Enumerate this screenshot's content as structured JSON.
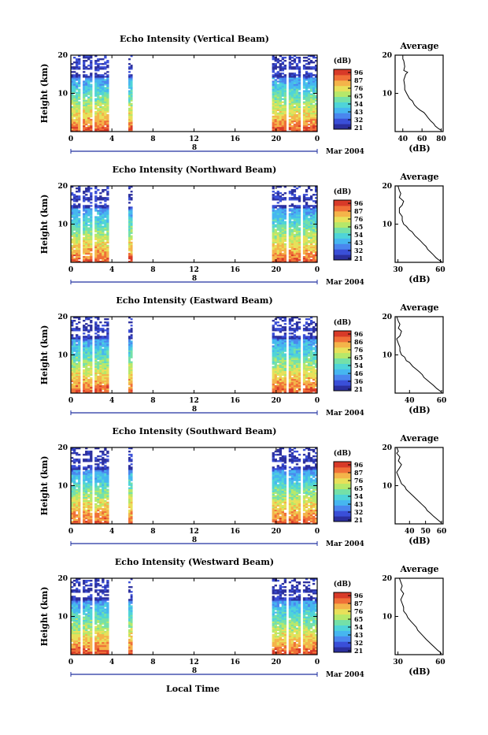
{
  "colorbar_colors": [
    "#2b2f9e",
    "#3a4fd8",
    "#4a86ee",
    "#46b6f0",
    "#4fd4d8",
    "#74e0a8",
    "#b6e86a",
    "#e8e05a",
    "#f4b44a",
    "#f07038",
    "#d83a28"
  ],
  "shared": {
    "x_ticks": [
      "0",
      "4",
      "8",
      "12",
      "16",
      "20",
      "0"
    ],
    "date_tick": "8",
    "date_label": "Mar 2004",
    "y_ticks": [
      "20",
      "10"
    ],
    "ylabel": "Height (km)",
    "unit": "(dB)",
    "avg_title": "Average",
    "xlabel": "Local Time"
  },
  "chart_data": [
    {
      "type": "heatmap",
      "title": "Echo Intensity (Vertical Beam)",
      "ylabel": "Height (km)",
      "xlabel": "",
      "ylim": [
        0,
        20
      ],
      "xlim": [
        0,
        24
      ],
      "data_blocks_hours": [
        [
          0,
          3.7
        ],
        [
          5.6,
          6.0
        ],
        [
          19.6,
          24
        ]
      ],
      "colorbar": {
        "label": "(dB)",
        "ticks": [
          "96",
          "87",
          "76",
          "65",
          "54",
          "43",
          "32",
          "21"
        ]
      },
      "avg_profile": {
        "title": "Average",
        "xlabel": "(dB)",
        "x_ticks": [
          "40",
          "60",
          "80"
        ],
        "xlim": [
          32,
          82
        ],
        "ylim": [
          0,
          20
        ],
        "x": [
          40,
          40,
          41,
          42,
          41,
          45,
          43,
          42,
          41,
          42,
          42,
          44,
          45,
          47,
          50,
          52,
          55,
          58,
          62,
          64,
          66,
          69,
          72,
          74,
          77,
          80
        ],
        "y": [
          20,
          19,
          18.5,
          17,
          16,
          15.5,
          15,
          14.2,
          13.5,
          12,
          11,
          10,
          9.5,
          8.6,
          8,
          7,
          6.2,
          5.6,
          5,
          4.4,
          3.7,
          2.8,
          2.1,
          1.4,
          0.8,
          0.3
        ]
      }
    },
    {
      "type": "heatmap",
      "title": "Echo Intensity (Northward Beam)",
      "ylabel": "Height (km)",
      "xlabel": "",
      "ylim": [
        0,
        20
      ],
      "xlim": [
        0,
        24
      ],
      "data_blocks_hours": [
        [
          0,
          3.7
        ],
        [
          5.6,
          6.0
        ],
        [
          19.6,
          24
        ]
      ],
      "colorbar": {
        "label": "(dB)",
        "ticks": [
          "96",
          "87",
          "76",
          "65",
          "54",
          "43",
          "32",
          "21"
        ]
      },
      "avg_profile": {
        "title": "Average",
        "xlabel": "(dB)",
        "x_ticks": [
          "30",
          "60"
        ],
        "xlim": [
          28,
          62
        ],
        "ylim": [
          0,
          20
        ],
        "x": [
          30,
          31,
          32,
          31,
          34,
          33,
          31,
          31,
          33,
          33,
          34,
          36,
          38,
          40,
          42,
          44,
          46,
          48,
          50,
          51,
          53,
          55,
          57,
          59,
          61
        ],
        "y": [
          20,
          18.8,
          18,
          17,
          16,
          15,
          14.2,
          13,
          12,
          11,
          10,
          9.4,
          8.5,
          8,
          7,
          6.3,
          5.6,
          4.8,
          4.1,
          3.4,
          2.7,
          2,
          1.2,
          0.6,
          0.2
        ]
      }
    },
    {
      "type": "heatmap",
      "title": "Echo Intensity (Eastward Beam)",
      "ylabel": "Height (km)",
      "xlabel": "",
      "ylim": [
        0,
        20
      ],
      "xlim": [
        0,
        24
      ],
      "data_blocks_hours": [
        [
          0,
          3.7
        ],
        [
          5.6,
          6.0
        ],
        [
          19.6,
          24
        ]
      ],
      "colorbar": {
        "label": "(dB)",
        "ticks": [
          "96",
          "86",
          "76",
          "65",
          "54",
          "46",
          "36",
          "21"
        ]
      },
      "avg_profile": {
        "title": "Average",
        "xlabel": "(dB)",
        "x_ticks": [
          "40",
          "60"
        ],
        "xlim": [
          31,
          61
        ],
        "ylim": [
          0,
          20
        ],
        "x": [
          32,
          33,
          34,
          33,
          35,
          34,
          32,
          33,
          34,
          34,
          35,
          37,
          38,
          40,
          42,
          44,
          46,
          48,
          49,
          51,
          53,
          55,
          57,
          59,
          60
        ],
        "y": [
          20,
          18.8,
          18,
          17,
          16.2,
          15,
          14.2,
          13,
          12,
          11,
          10,
          9.4,
          8.5,
          8,
          7,
          6.3,
          5.6,
          4.8,
          4.1,
          3.4,
          2.7,
          2,
          1.2,
          0.6,
          0.2
        ]
      }
    },
    {
      "type": "heatmap",
      "title": "Echo Intensity (Southward Beam)",
      "ylabel": "Height (km)",
      "xlabel": "",
      "ylim": [
        0,
        20
      ],
      "xlim": [
        0,
        24
      ],
      "data_blocks_hours": [
        [
          0,
          3.7
        ],
        [
          5.6,
          6.0
        ],
        [
          19.6,
          24
        ]
      ],
      "colorbar": {
        "label": "(dB)",
        "ticks": [
          "96",
          "87",
          "76",
          "65",
          "54",
          "43",
          "32",
          "21"
        ]
      },
      "avg_profile": {
        "title": "Average",
        "xlabel": "(dB)",
        "x_ticks": [
          "40",
          "50",
          "60"
        ],
        "xlim": [
          31,
          61
        ],
        "ylim": [
          0,
          20
        ],
        "x": [
          32,
          33,
          32,
          34,
          33,
          35,
          34,
          32,
          33,
          34,
          35,
          37,
          38,
          40,
          42,
          44,
          46,
          48,
          50,
          51,
          53,
          55,
          57,
          59,
          60
        ],
        "y": [
          20,
          19,
          18.5,
          17.5,
          16.5,
          15.5,
          14.8,
          13.5,
          12.5,
          11.5,
          10.5,
          9.8,
          9,
          8.2,
          7.4,
          6.6,
          5.8,
          5,
          4.2,
          3.5,
          2.8,
          2,
          1.3,
          0.6,
          0.2
        ]
      }
    },
    {
      "type": "heatmap",
      "title": "Echo Intensity (Westward Beam)",
      "ylabel": "Height (km)",
      "xlabel": "Local Time",
      "ylim": [
        0,
        20
      ],
      "xlim": [
        0,
        24
      ],
      "data_blocks_hours": [
        [
          0,
          3.7
        ],
        [
          5.6,
          6.0
        ],
        [
          19.6,
          24
        ]
      ],
      "colorbar": {
        "label": "(dB)",
        "ticks": [
          "96",
          "87",
          "76",
          "65",
          "54",
          "43",
          "32",
          "21"
        ]
      },
      "avg_profile": {
        "title": "Average",
        "xlabel": "(dB)",
        "x_ticks": [
          "30",
          "60"
        ],
        "xlim": [
          28,
          62
        ],
        "ylim": [
          0,
          20
        ],
        "x": [
          31,
          32,
          33,
          32,
          34,
          33,
          32,
          33,
          34,
          34,
          36,
          37,
          39,
          41,
          43,
          44,
          46,
          48,
          50,
          52,
          54,
          56,
          58,
          60,
          61
        ],
        "y": [
          20,
          19,
          18,
          17,
          16,
          15.2,
          14.4,
          13.4,
          12.4,
          11.4,
          10.5,
          9.7,
          8.8,
          8,
          7.2,
          6.4,
          5.6,
          4.8,
          4,
          3.3,
          2.6,
          1.9,
          1.2,
          0.6,
          0.2
        ]
      }
    }
  ]
}
